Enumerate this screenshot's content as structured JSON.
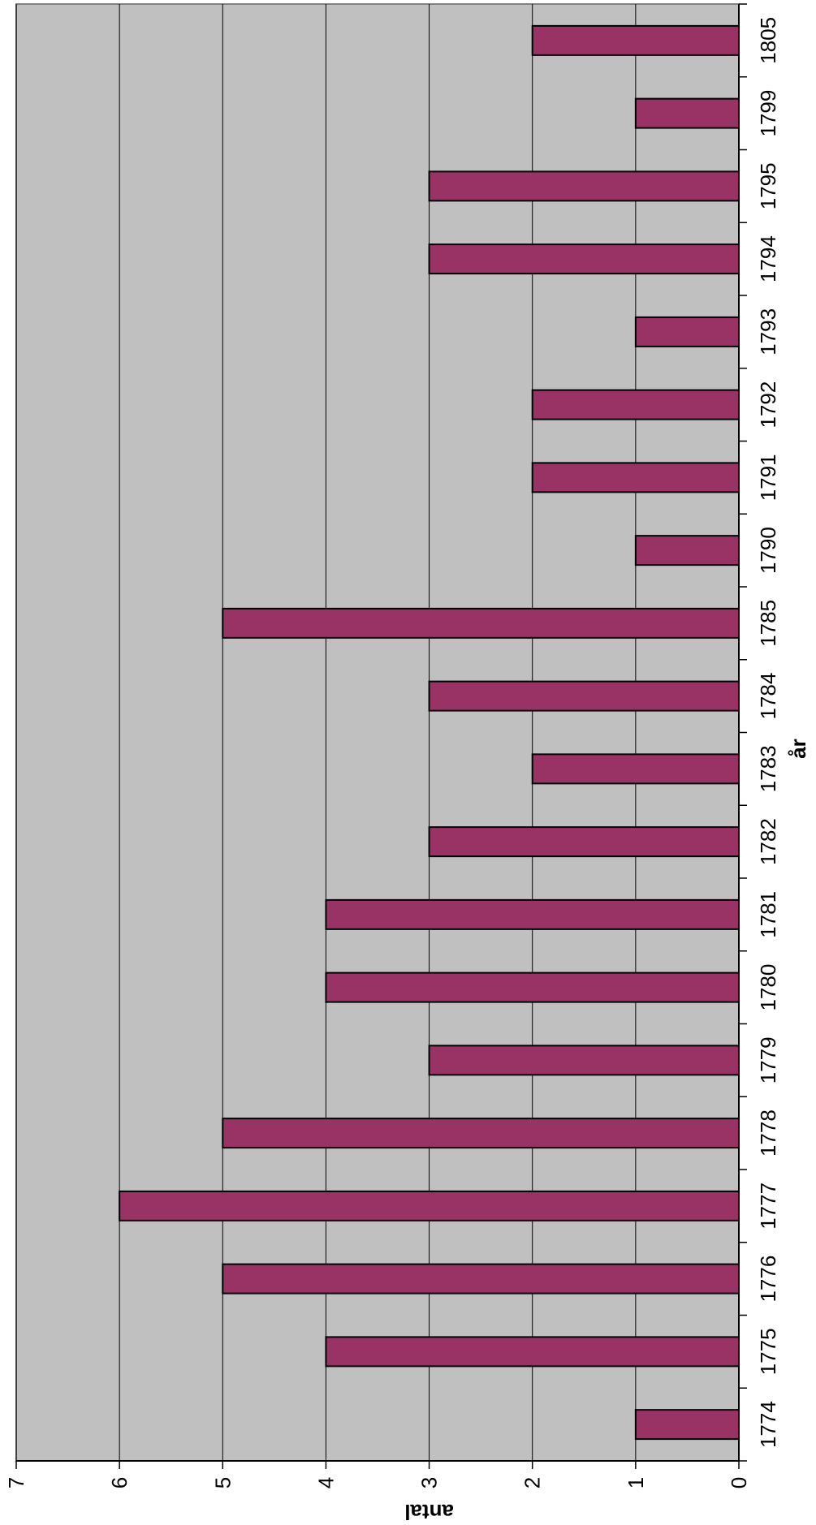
{
  "chart_data": {
    "type": "bar",
    "orientation": "vertical-bars-rotated",
    "title": "",
    "xlabel": "år",
    "ylabel": "antal",
    "categories": [
      "1774",
      "1775",
      "1776",
      "1777",
      "1778",
      "1779",
      "1780",
      "1781",
      "1782",
      "1783",
      "1784",
      "1785",
      "1790",
      "1791",
      "1792",
      "1793",
      "1794",
      "1795",
      "1799",
      "1805"
    ],
    "values": [
      1,
      4,
      5,
      6,
      5,
      3,
      4,
      4,
      3,
      2,
      3,
      5,
      1,
      2,
      2,
      1,
      3,
      3,
      1,
      2
    ],
    "ylim": [
      0,
      7
    ],
    "yticks": [
      "0",
      "1",
      "2",
      "3",
      "4",
      "5",
      "6",
      "7"
    ],
    "grid": true,
    "legend": "none",
    "colors": {
      "bar": "#993366",
      "plot_background": "#c0c0c0",
      "gridline": "#000000"
    }
  }
}
